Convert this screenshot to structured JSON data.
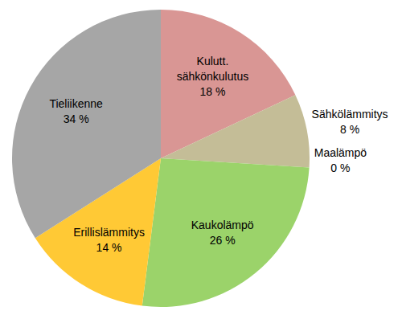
{
  "chart_data": {
    "type": "pie",
    "categories": [
      "Kulutt. sähkönkulutus",
      "Sähkölämmitys",
      "Maalämpö",
      "Kaukolämpö",
      "Erillislämmitys",
      "Tieliikenne"
    ],
    "values": [
      18,
      8,
      0,
      26,
      14,
      34
    ],
    "value_labels": [
      "18 %",
      "8 %",
      "0 %",
      "26 %",
      "14 %",
      "34 %"
    ],
    "colors": [
      "#d99694",
      "#c4bd97",
      "#f79646",
      "#9bd36a",
      "#ffc935",
      "#a6a6a6"
    ],
    "data_labels": true
  }
}
